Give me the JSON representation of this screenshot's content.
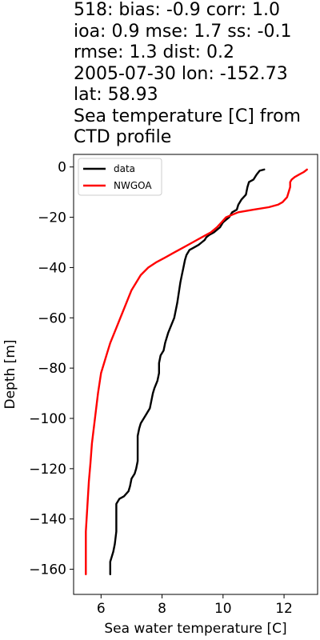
{
  "title_lines": [
    "518: bias: -0.9  corr: 1.0",
    "ioa: 0.9  mse: 1.7  ss: -0.1",
    "rmse: 1.3  dist: 0.2",
    "2005-07-30 lon: -152.73",
    "lat: 58.93",
    "Sea temperature [C] from",
    "CTD profile"
  ],
  "chart_data": {
    "type": "line",
    "xlabel": "Sea water temperature [C]",
    "ylabel": "Depth [m]",
    "xlim": [
      5.1,
      13.1
    ],
    "ylim": [
      -170,
      5
    ],
    "x_ticks": [
      6,
      8,
      10,
      12
    ],
    "y_ticks": [
      0,
      -20,
      -40,
      -60,
      -80,
      -100,
      -120,
      -140,
      -160
    ],
    "grid": false,
    "legend_position": "top-left",
    "series": [
      {
        "name": "data",
        "color": "#000000",
        "points": [
          [
            11.35,
            -1
          ],
          [
            11.2,
            -1.5
          ],
          [
            11.1,
            -3
          ],
          [
            11.0,
            -5
          ],
          [
            10.85,
            -6
          ],
          [
            10.8,
            -8
          ],
          [
            10.75,
            -11
          ],
          [
            10.6,
            -13
          ],
          [
            10.5,
            -15
          ],
          [
            10.45,
            -17
          ],
          [
            10.3,
            -18
          ],
          [
            10.2,
            -20
          ],
          [
            10.1,
            -21
          ],
          [
            10.0,
            -22
          ],
          [
            9.9,
            -24
          ],
          [
            9.7,
            -26
          ],
          [
            9.55,
            -27
          ],
          [
            9.45,
            -28
          ],
          [
            9.4,
            -29
          ],
          [
            9.3,
            -30
          ],
          [
            9.2,
            -31
          ],
          [
            9.05,
            -32
          ],
          [
            8.9,
            -33
          ],
          [
            8.8,
            -35
          ],
          [
            8.75,
            -37
          ],
          [
            8.7,
            -40
          ],
          [
            8.65,
            -43
          ],
          [
            8.6,
            -46
          ],
          [
            8.55,
            -50
          ],
          [
            8.5,
            -54
          ],
          [
            8.45,
            -57
          ],
          [
            8.4,
            -60
          ],
          [
            8.3,
            -63
          ],
          [
            8.2,
            -66
          ],
          [
            8.1,
            -70
          ],
          [
            8.05,
            -73
          ],
          [
            7.95,
            -75
          ],
          [
            7.9,
            -78
          ],
          [
            7.9,
            -82
          ],
          [
            7.85,
            -85
          ],
          [
            7.75,
            -88
          ],
          [
            7.7,
            -90
          ],
          [
            7.65,
            -93
          ],
          [
            7.6,
            -96
          ],
          [
            7.5,
            -98
          ],
          [
            7.4,
            -100
          ],
          [
            7.3,
            -102
          ],
          [
            7.25,
            -104
          ],
          [
            7.2,
            -107
          ],
          [
            7.2,
            -112
          ],
          [
            7.2,
            -117
          ],
          [
            7.15,
            -120
          ],
          [
            7.1,
            -122
          ],
          [
            7.0,
            -124
          ],
          [
            6.95,
            -127
          ],
          [
            6.9,
            -129
          ],
          [
            6.75,
            -131
          ],
          [
            6.6,
            -132
          ],
          [
            6.5,
            -134
          ],
          [
            6.5,
            -137
          ],
          [
            6.5,
            -140
          ],
          [
            6.5,
            -145
          ],
          [
            6.45,
            -150
          ],
          [
            6.4,
            -153
          ],
          [
            6.35,
            -155
          ],
          [
            6.3,
            -157
          ],
          [
            6.3,
            -160
          ],
          [
            6.3,
            -162
          ]
        ]
      },
      {
        "name": "NWGOA",
        "color": "#ff0000",
        "points": [
          [
            12.75,
            -1
          ],
          [
            12.65,
            -2
          ],
          [
            12.5,
            -3
          ],
          [
            12.35,
            -4
          ],
          [
            12.25,
            -5
          ],
          [
            12.2,
            -6
          ],
          [
            12.2,
            -8
          ],
          [
            12.1,
            -12
          ],
          [
            11.95,
            -14
          ],
          [
            11.8,
            -15
          ],
          [
            11.5,
            -16
          ],
          [
            11.0,
            -17
          ],
          [
            10.5,
            -18
          ],
          [
            10.3,
            -19
          ],
          [
            10.1,
            -20
          ],
          [
            9.95,
            -22
          ],
          [
            9.8,
            -24
          ],
          [
            9.6,
            -26
          ],
          [
            9.3,
            -28
          ],
          [
            9.0,
            -30
          ],
          [
            8.7,
            -32
          ],
          [
            8.4,
            -34
          ],
          [
            8.1,
            -36
          ],
          [
            7.8,
            -38
          ],
          [
            7.55,
            -40
          ],
          [
            7.3,
            -43
          ],
          [
            7.15,
            -46
          ],
          [
            7.0,
            -49
          ],
          [
            6.9,
            -52
          ],
          [
            6.8,
            -55
          ],
          [
            6.7,
            -58
          ],
          [
            6.6,
            -61
          ],
          [
            6.5,
            -64
          ],
          [
            6.4,
            -67
          ],
          [
            6.3,
            -70
          ],
          [
            6.2,
            -74
          ],
          [
            6.1,
            -78
          ],
          [
            6.0,
            -82
          ],
          [
            5.95,
            -86
          ],
          [
            5.9,
            -90
          ],
          [
            5.85,
            -95
          ],
          [
            5.8,
            -100
          ],
          [
            5.75,
            -105
          ],
          [
            5.7,
            -110
          ],
          [
            5.65,
            -118
          ],
          [
            5.6,
            -125
          ],
          [
            5.55,
            -135
          ],
          [
            5.5,
            -145
          ],
          [
            5.5,
            -155
          ],
          [
            5.5,
            -162
          ]
        ]
      }
    ]
  }
}
